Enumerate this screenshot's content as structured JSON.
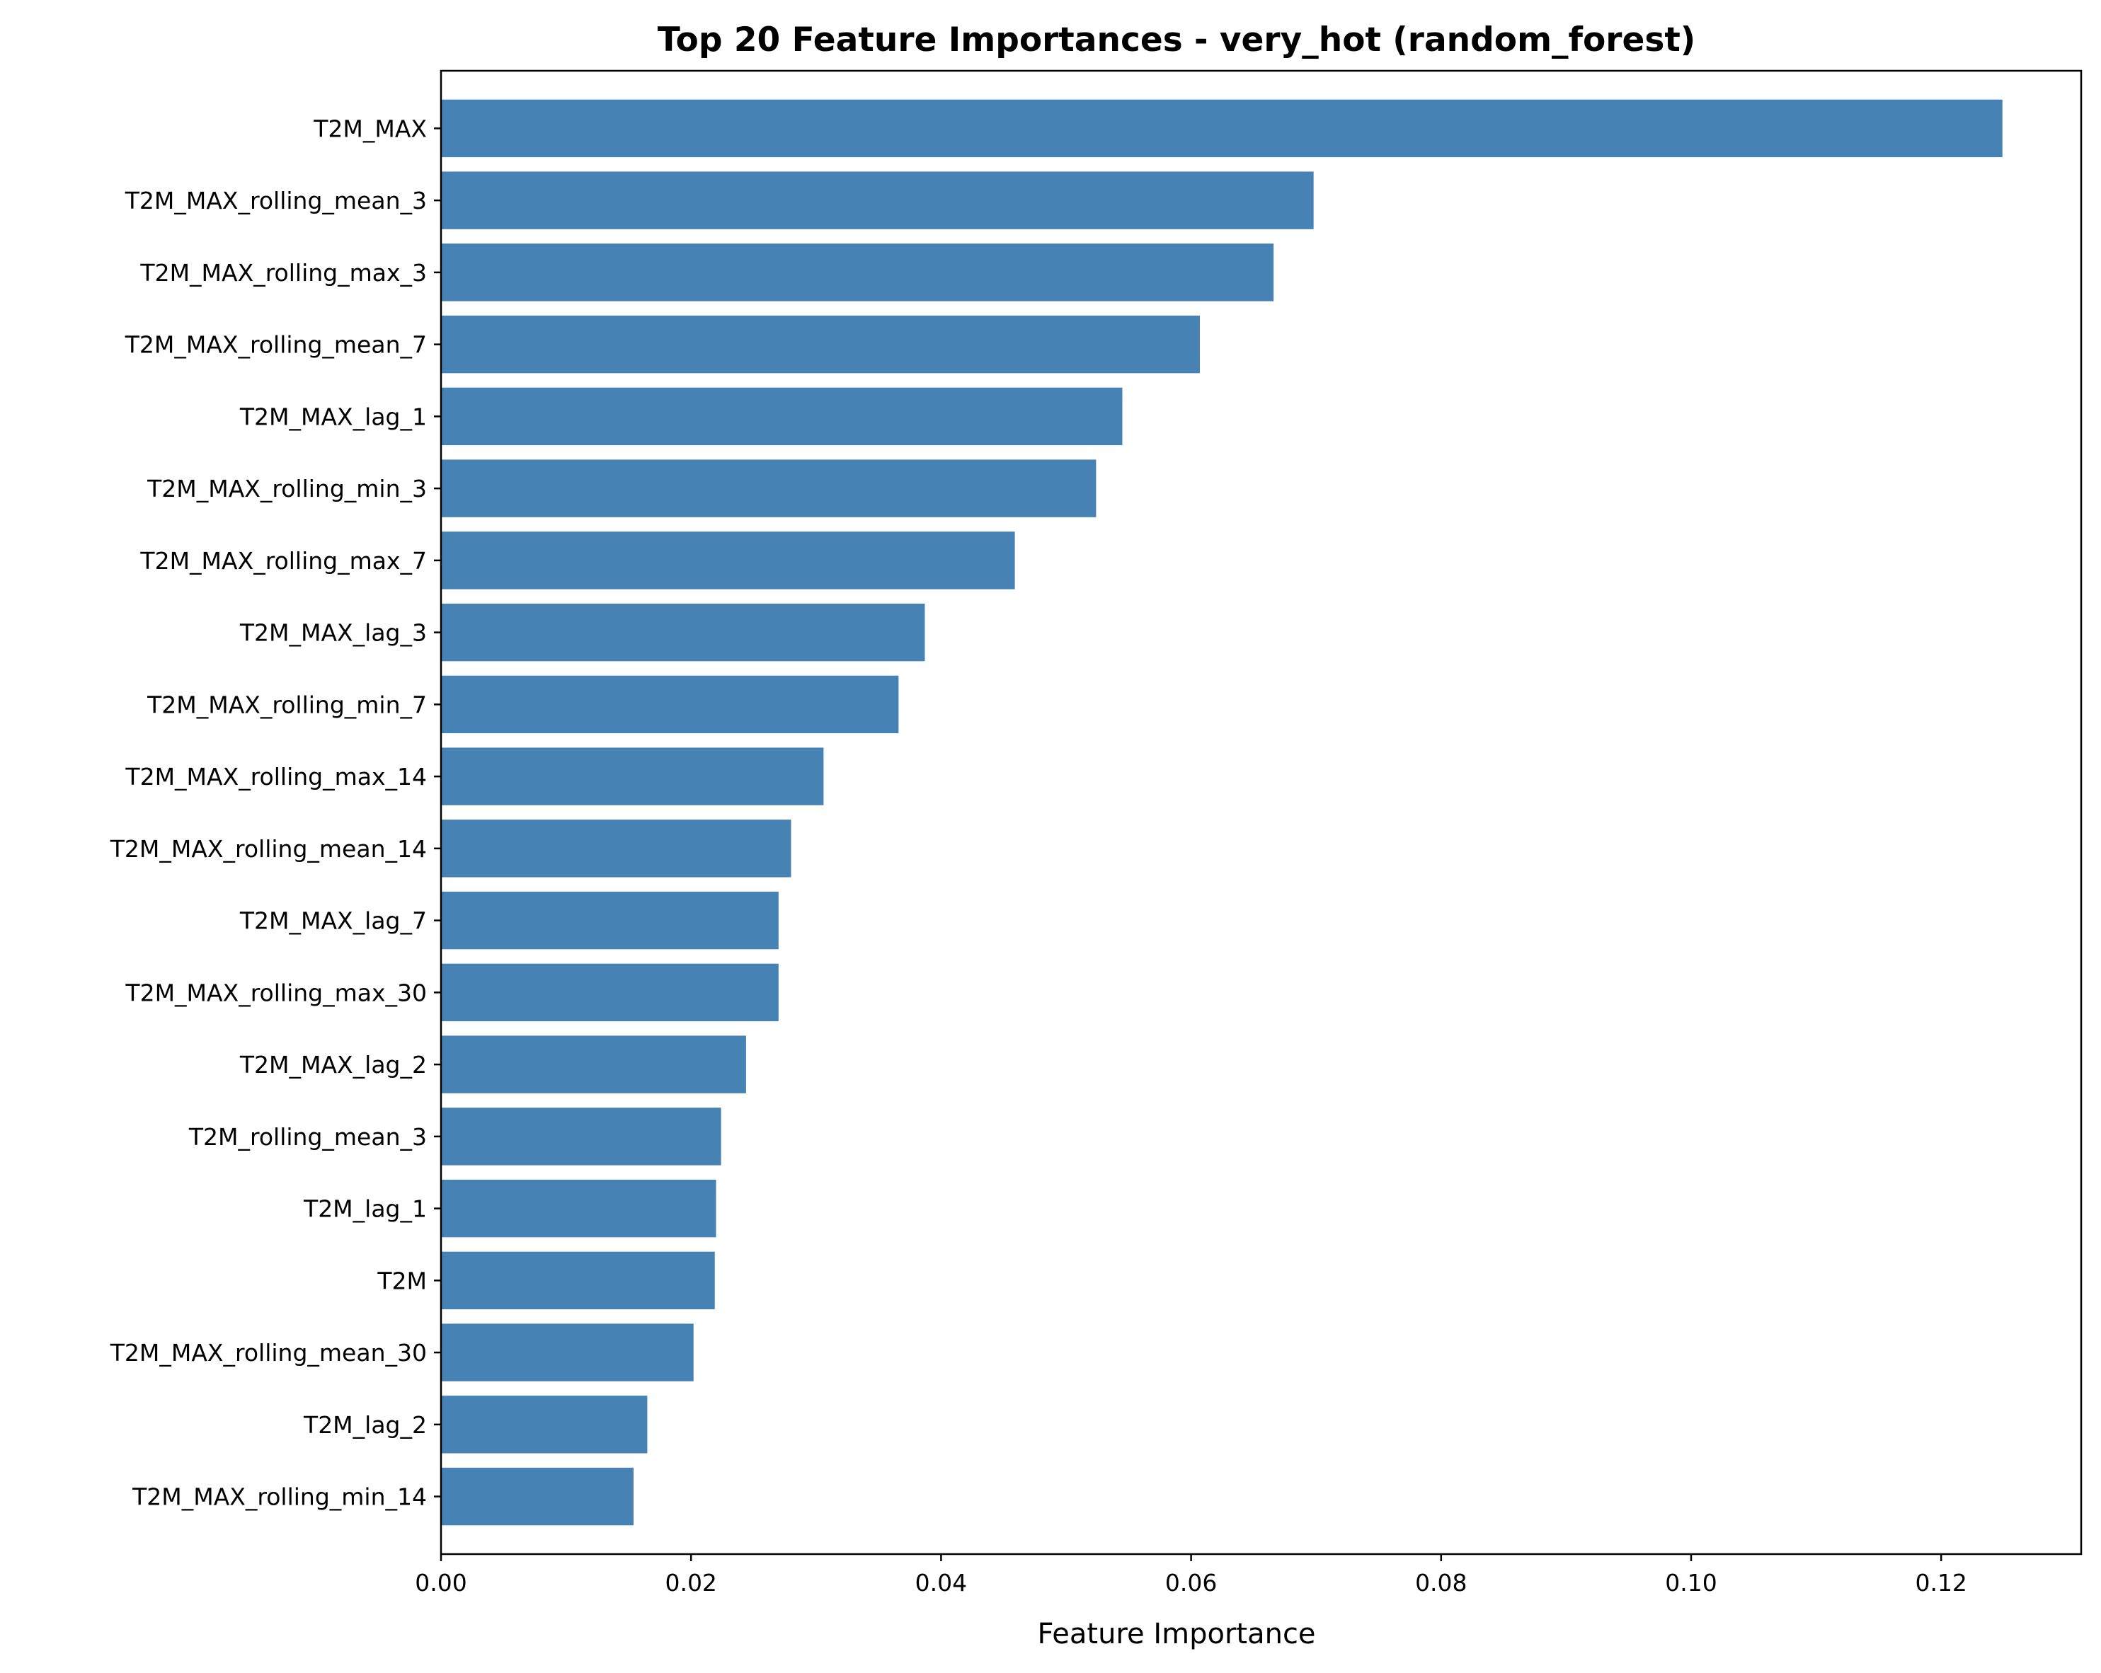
{
  "chart_data": {
    "type": "bar",
    "orientation": "horizontal",
    "title": "Top 20 Feature Importances - very_hot (random_forest)",
    "xlabel": "Feature Importance",
    "ylabel": "",
    "xlim": [
      0,
      0.1312
    ],
    "xticks": [
      0.0,
      0.02,
      0.04,
      0.06,
      0.08,
      0.1,
      0.12
    ],
    "xtick_labels": [
      "0.00",
      "0.02",
      "0.04",
      "0.06",
      "0.08",
      "0.10",
      "0.12"
    ],
    "grid": false,
    "legend": "none",
    "bar_color": "#4682b4",
    "categories": [
      "T2M_MAX",
      "T2M_MAX_rolling_mean_3",
      "T2M_MAX_rolling_max_3",
      "T2M_MAX_rolling_mean_7",
      "T2M_MAX_lag_1",
      "T2M_MAX_rolling_min_3",
      "T2M_MAX_rolling_max_7",
      "T2M_MAX_lag_3",
      "T2M_MAX_rolling_min_7",
      "T2M_MAX_rolling_max_14",
      "T2M_MAX_rolling_mean_14",
      "T2M_MAX_lag_7",
      "T2M_MAX_rolling_max_30",
      "T2M_MAX_lag_2",
      "T2M_rolling_mean_3",
      "T2M_lag_1",
      "T2M",
      "T2M_MAX_rolling_mean_30",
      "T2M_lag_2",
      "T2M_MAX_rolling_min_14"
    ],
    "values": [
      0.1249,
      0.0698,
      0.0666,
      0.0607,
      0.0545,
      0.0524,
      0.0459,
      0.0387,
      0.0366,
      0.0306,
      0.028,
      0.027,
      0.027,
      0.0244,
      0.0224,
      0.022,
      0.0219,
      0.0202,
      0.0165,
      0.0154
    ]
  }
}
